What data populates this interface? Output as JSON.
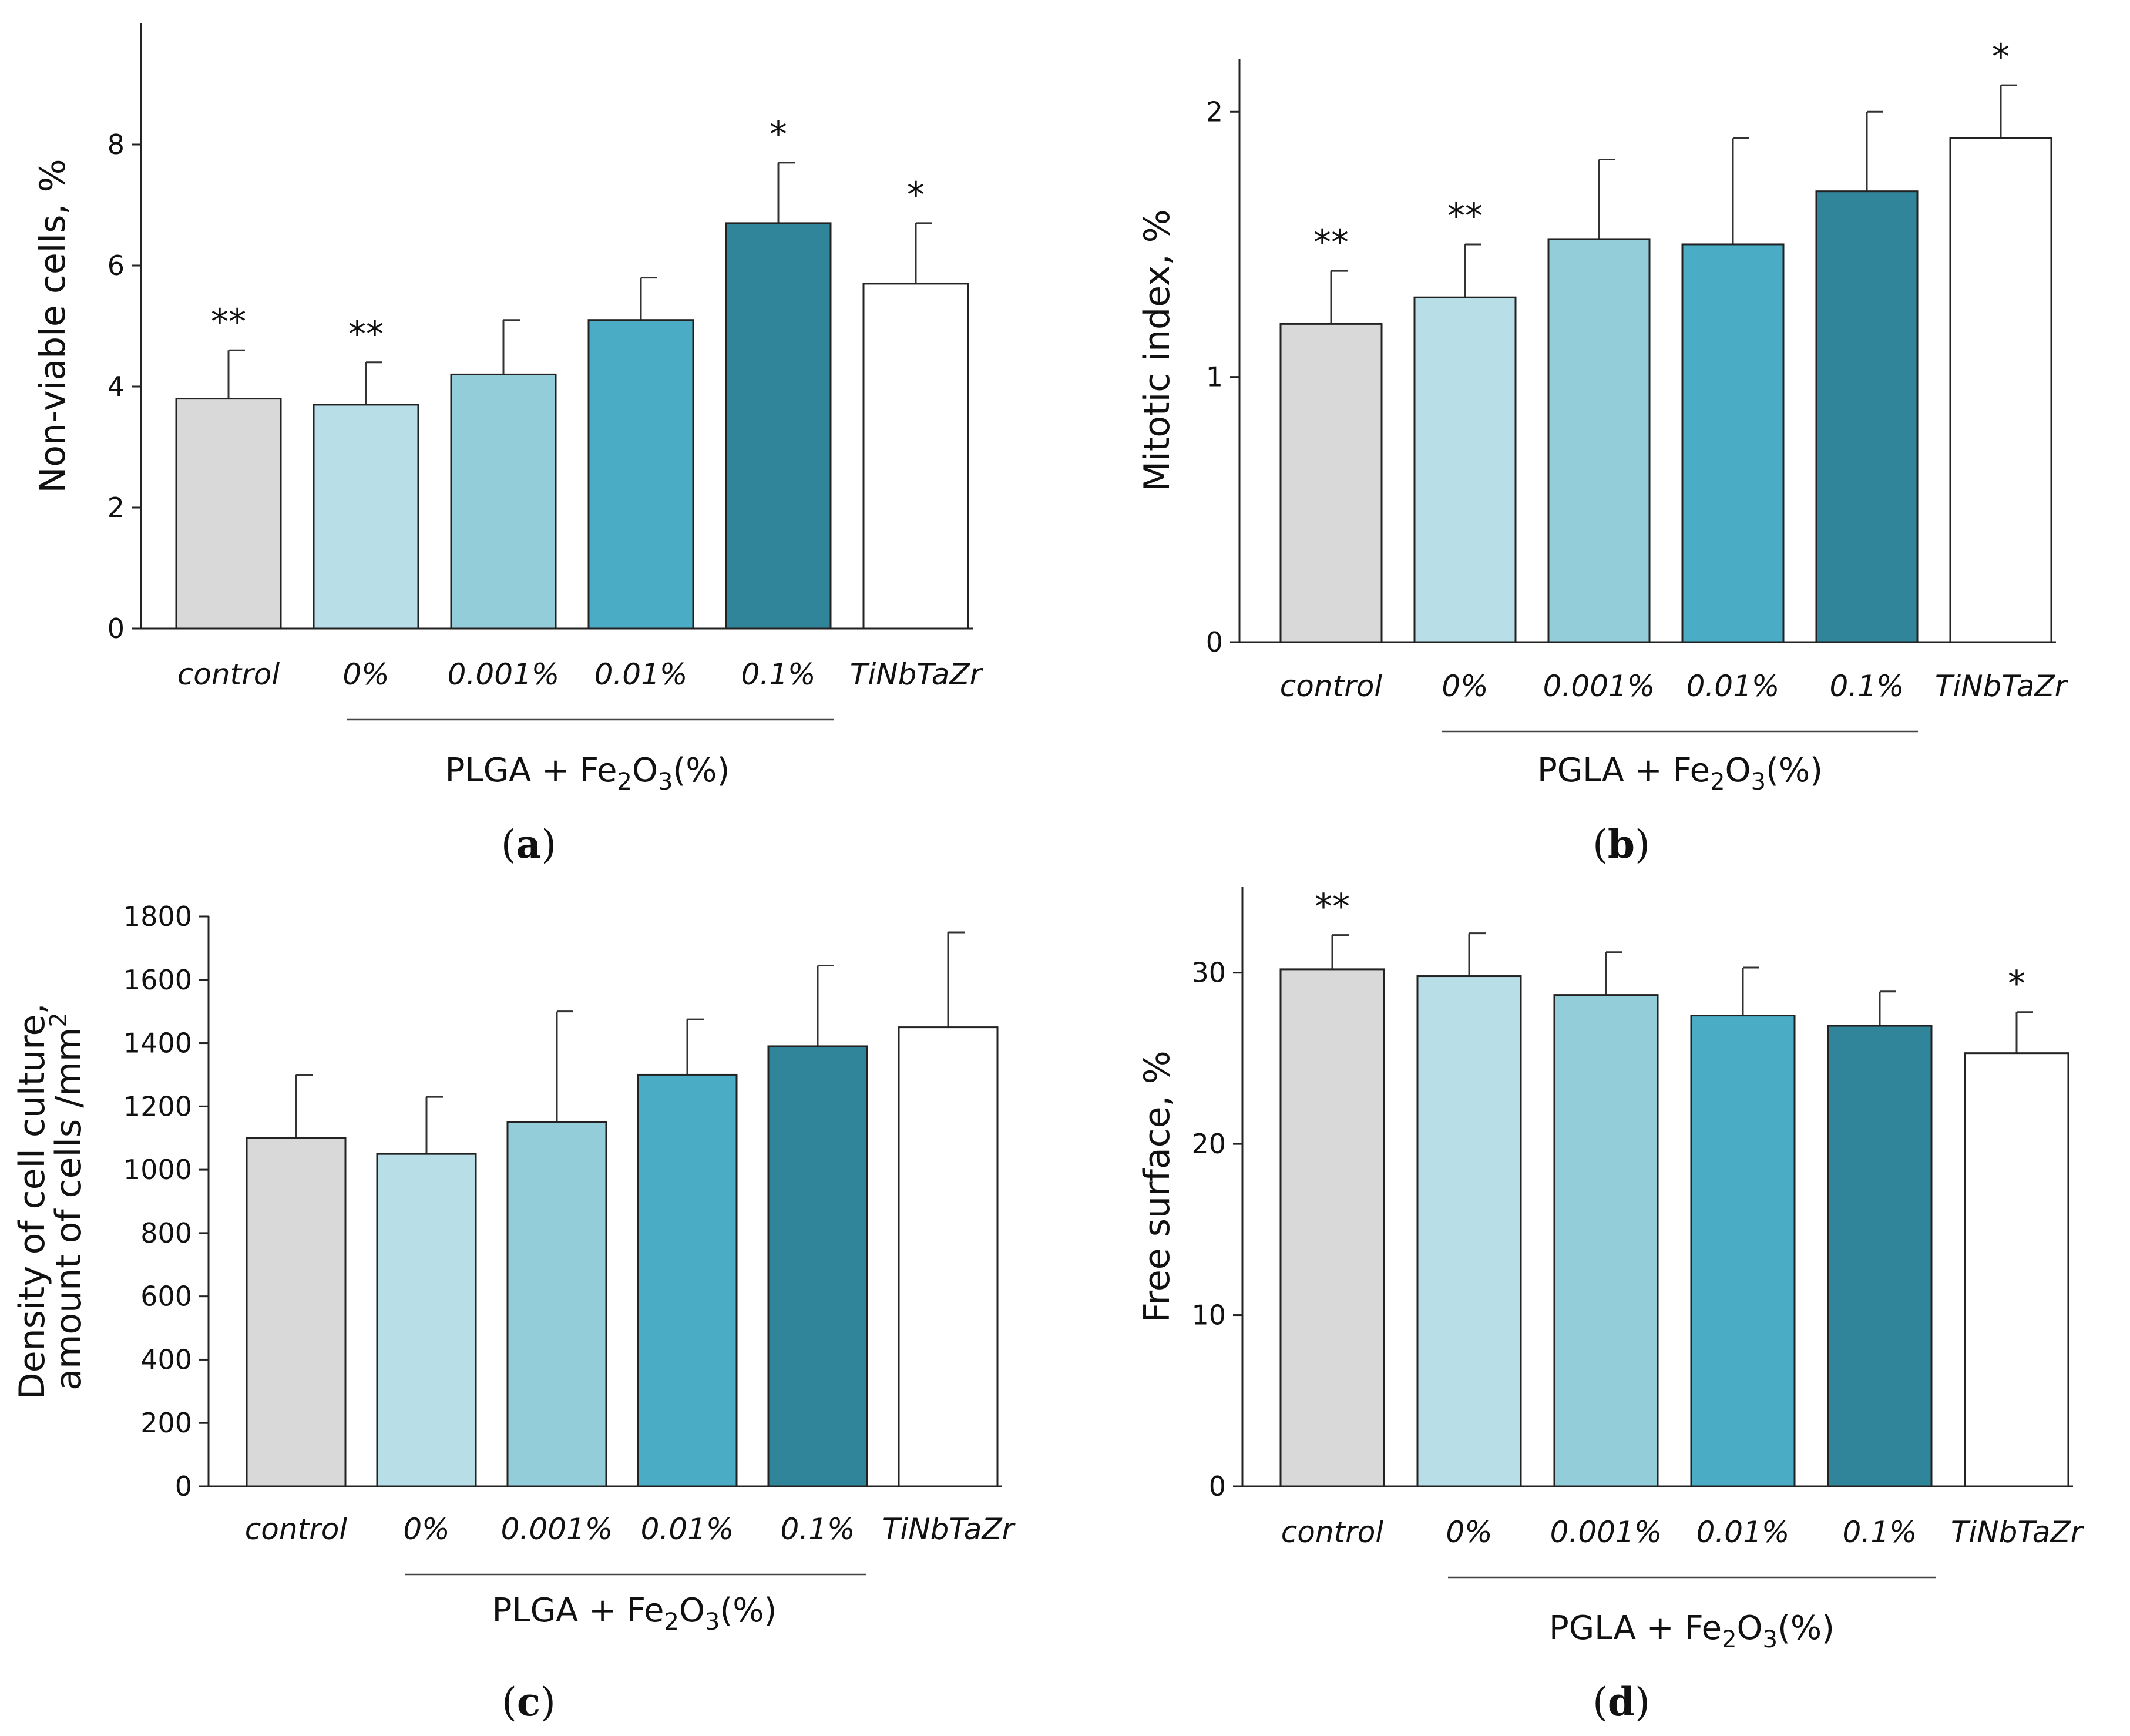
{
  "colors": {
    "control": "#d9d9d9",
    "p0": "#b8dfe8",
    "p0001": "#93cdda",
    "p001": "#4aacc5",
    "p01": "#31859b",
    "tinbtazr": "#ffffff",
    "edge": "#222222"
  },
  "categories": [
    "control",
    "0%",
    "0.001%",
    "0.01%",
    "0.1%",
    "TiNbTaZr"
  ],
  "chart_data": [
    {
      "type": "bar",
      "panel": "a",
      "panel_label": "a",
      "ylabel": "Non-viable cells, %",
      "group_label": {
        "prefix": "PLGA + Fe",
        "sub1": "2",
        "mid": "O",
        "sub2": "3",
        "suffix": "(%)"
      },
      "ylim": [
        0,
        10
      ],
      "yticks": [
        0,
        2,
        4,
        6,
        8
      ],
      "ytick_labels": [
        "0",
        "2",
        "4",
        "6",
        "8"
      ],
      "values": [
        3.8,
        3.7,
        4.2,
        5.1,
        6.7,
        5.7
      ],
      "errors": [
        0.8,
        0.7,
        0.9,
        0.7,
        1.0,
        1.0
      ],
      "annotations": [
        "**",
        "**",
        "",
        "",
        "*",
        "*"
      ]
    },
    {
      "type": "bar",
      "panel": "b",
      "panel_label": "b",
      "ylabel": "Mitotic index, %",
      "group_label": {
        "prefix": "PGLA + Fe",
        "sub1": "2",
        "mid": "O",
        "sub2": "3",
        "suffix": "(%)"
      },
      "ylim": [
        0,
        2.2
      ],
      "yticks": [
        0,
        1,
        2
      ],
      "ytick_labels": [
        "0",
        "1",
        "2"
      ],
      "values": [
        1.2,
        1.3,
        1.52,
        1.5,
        1.7,
        1.9
      ],
      "errors": [
        0.2,
        0.2,
        0.3,
        0.4,
        0.3,
        0.2
      ],
      "annotations": [
        "**",
        "**",
        "",
        "",
        "",
        "*"
      ]
    },
    {
      "type": "bar",
      "panel": "c",
      "panel_label": "c",
      "ylabel_lines": [
        "Density of cell culture,",
        "amount of cells /mm"
      ],
      "ylabel_sup": "2",
      "group_label": {
        "prefix": "PLGA + Fe",
        "sub1": "2",
        "mid": "O",
        "sub2": "3",
        "suffix": "(%)"
      },
      "ylim": [
        0,
        1800
      ],
      "yticks": [
        0,
        200,
        400,
        600,
        800,
        1000,
        1200,
        1400,
        1600,
        1800
      ],
      "ytick_labels": [
        "0",
        "200",
        "400",
        "600",
        "800",
        "1000",
        "1200",
        "1400",
        "1600",
        "1800"
      ],
      "values": [
        1100,
        1050,
        1150,
        1300,
        1390,
        1450
      ],
      "errors": [
        200,
        180,
        350,
        175,
        255,
        300
      ],
      "annotations": [
        "",
        "",
        "",
        "",
        "",
        ""
      ]
    },
    {
      "type": "bar",
      "panel": "d",
      "panel_label": "d",
      "ylabel": "Free surface, %",
      "group_label": {
        "prefix": "PGLA + Fe",
        "sub1": "2",
        "mid": "O",
        "sub2": "3",
        "suffix": "(%)"
      },
      "ylim": [
        0,
        35
      ],
      "yticks": [
        0,
        10,
        20,
        30
      ],
      "ytick_labels": [
        "0",
        "10",
        "20",
        "30"
      ],
      "values": [
        30.2,
        29.8,
        28.7,
        27.5,
        26.9,
        25.3
      ],
      "errors": [
        2.0,
        2.5,
        2.5,
        2.8,
        2.0,
        2.4
      ],
      "annotations": [
        "**",
        "",
        "",
        "",
        "",
        "*"
      ]
    }
  ]
}
